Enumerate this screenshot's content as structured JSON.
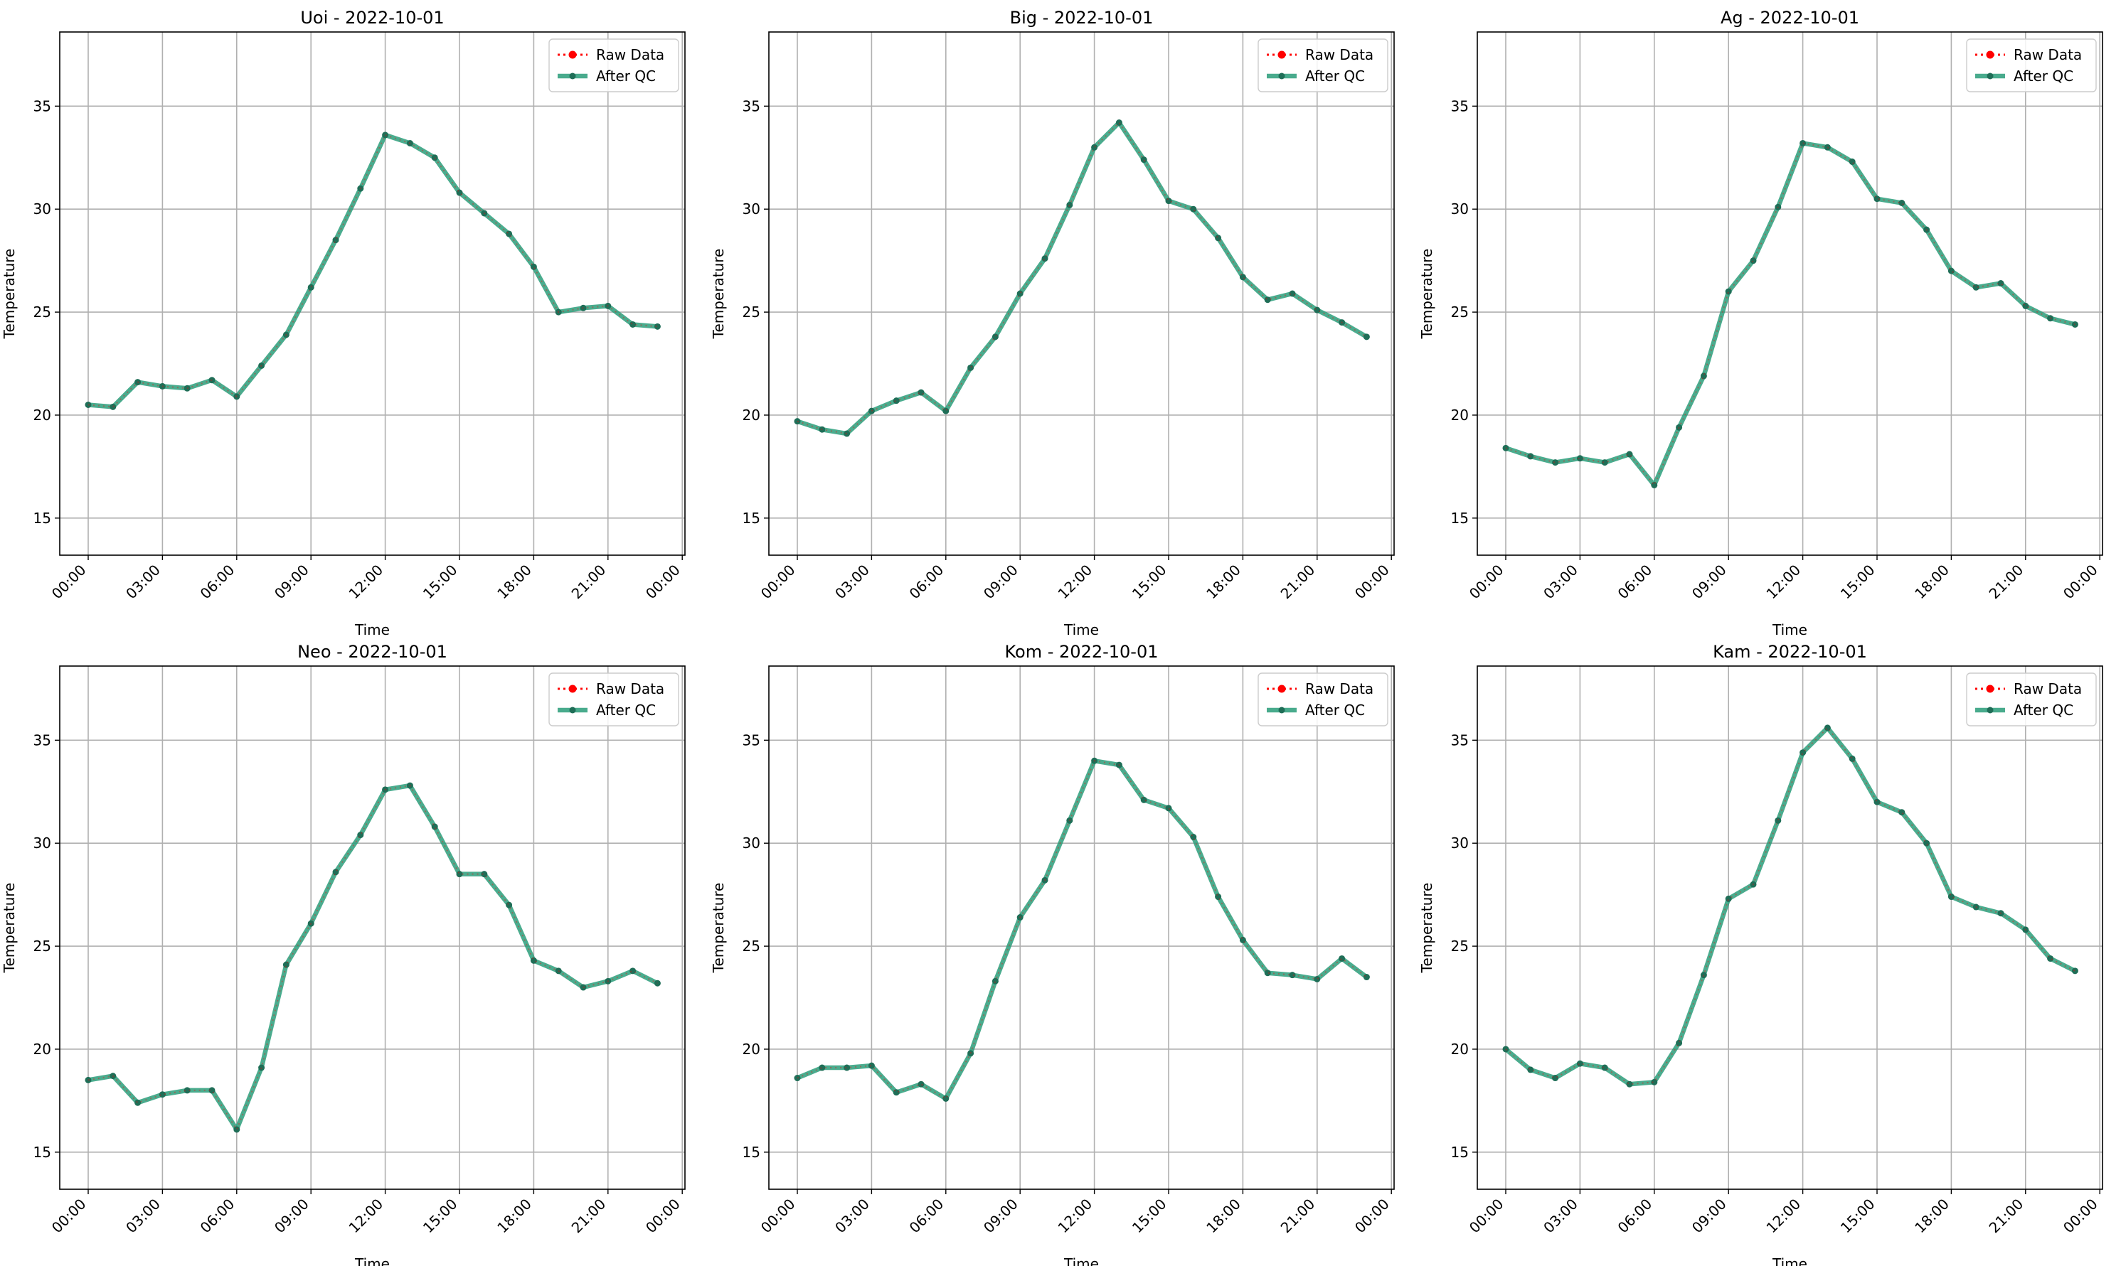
{
  "figure": {
    "legend": {
      "raw_label": "Raw Data",
      "qc_label": "After QC",
      "placement": "top-right"
    },
    "colors": {
      "raw": "#ff0000",
      "qc": "#2a9d7a",
      "qc_marker": "#1f6e57",
      "grid": "#b0b0b0",
      "axes": "#000000"
    }
  },
  "chart_data": [
    {
      "type": "line",
      "title": "Uoi - 2022-10-01",
      "xlabel": "Time",
      "ylabel": "Temperature",
      "x": [
        "00:00",
        "01:00",
        "02:00",
        "03:00",
        "04:00",
        "05:00",
        "06:00",
        "07:00",
        "08:00",
        "09:00",
        "10:00",
        "11:00",
        "12:00",
        "13:00",
        "14:00",
        "15:00",
        "16:00",
        "17:00",
        "18:00",
        "19:00",
        "20:00",
        "21:00",
        "22:00",
        "23:00"
      ],
      "xticks": [
        "00:00",
        "03:00",
        "06:00",
        "09:00",
        "12:00",
        "15:00",
        "18:00",
        "21:00",
        "00:00"
      ],
      "yticks": [
        15,
        20,
        25,
        30,
        35
      ],
      "ylim": [
        13.2,
        38.6
      ],
      "grid": true,
      "series": [
        {
          "name": "Raw Data",
          "values": [
            20.5,
            20.4,
            21.6,
            21.4,
            21.3,
            21.7,
            20.9,
            22.4,
            23.9,
            26.2,
            28.5,
            31.0,
            33.6,
            33.2,
            32.5,
            30.8,
            29.8,
            28.8,
            27.2,
            25.0,
            25.2,
            25.3,
            24.4,
            24.3
          ]
        },
        {
          "name": "After QC",
          "values": [
            20.5,
            20.4,
            21.6,
            21.4,
            21.3,
            21.7,
            20.9,
            22.4,
            23.9,
            26.2,
            28.5,
            31.0,
            33.6,
            33.2,
            32.5,
            30.8,
            29.8,
            28.8,
            27.2,
            25.0,
            25.2,
            25.3,
            24.4,
            24.3
          ]
        }
      ]
    },
    {
      "type": "line",
      "title": "Big - 2022-10-01",
      "xlabel": "Time",
      "ylabel": "Temperature",
      "x": [
        "00:00",
        "01:00",
        "02:00",
        "03:00",
        "04:00",
        "05:00",
        "06:00",
        "07:00",
        "08:00",
        "09:00",
        "10:00",
        "11:00",
        "12:00",
        "13:00",
        "14:00",
        "15:00",
        "16:00",
        "17:00",
        "18:00",
        "19:00",
        "20:00",
        "21:00",
        "22:00",
        "23:00"
      ],
      "xticks": [
        "00:00",
        "03:00",
        "06:00",
        "09:00",
        "12:00",
        "15:00",
        "18:00",
        "21:00",
        "00:00"
      ],
      "yticks": [
        15,
        20,
        25,
        30,
        35
      ],
      "ylim": [
        13.2,
        38.6
      ],
      "grid": true,
      "series": [
        {
          "name": "Raw Data",
          "values": [
            19.7,
            19.3,
            19.1,
            20.2,
            20.7,
            21.1,
            20.2,
            22.3,
            23.8,
            25.9,
            27.6,
            30.2,
            33.0,
            34.2,
            32.4,
            30.4,
            30.0,
            28.6,
            26.7,
            25.6,
            25.9,
            25.1,
            24.5,
            23.8
          ]
        },
        {
          "name": "After QC",
          "values": [
            19.7,
            19.3,
            19.1,
            20.2,
            20.7,
            21.1,
            20.2,
            22.3,
            23.8,
            25.9,
            27.6,
            30.2,
            33.0,
            34.2,
            32.4,
            30.4,
            30.0,
            28.6,
            26.7,
            25.6,
            25.9,
            25.1,
            24.5,
            23.8
          ]
        }
      ]
    },
    {
      "type": "line",
      "title": "Ag - 2022-10-01",
      "xlabel": "Time",
      "ylabel": "Temperature",
      "x": [
        "00:00",
        "01:00",
        "02:00",
        "03:00",
        "04:00",
        "05:00",
        "06:00",
        "07:00",
        "08:00",
        "09:00",
        "10:00",
        "11:00",
        "12:00",
        "13:00",
        "14:00",
        "15:00",
        "16:00",
        "17:00",
        "18:00",
        "19:00",
        "20:00",
        "21:00",
        "22:00",
        "23:00"
      ],
      "xticks": [
        "00:00",
        "03:00",
        "06:00",
        "09:00",
        "12:00",
        "15:00",
        "18:00",
        "21:00",
        "00:00"
      ],
      "yticks": [
        15,
        20,
        25,
        30,
        35
      ],
      "ylim": [
        13.2,
        38.6
      ],
      "grid": true,
      "series": [
        {
          "name": "Raw Data",
          "values": [
            18.4,
            18.0,
            17.7,
            17.9,
            17.7,
            18.1,
            16.6,
            19.4,
            21.9,
            26.0,
            27.5,
            30.1,
            33.2,
            33.0,
            32.3,
            30.5,
            30.3,
            29.0,
            27.0,
            26.2,
            26.4,
            25.3,
            24.7,
            24.4
          ]
        },
        {
          "name": "After QC",
          "values": [
            18.4,
            18.0,
            17.7,
            17.9,
            17.7,
            18.1,
            16.6,
            19.4,
            21.9,
            26.0,
            27.5,
            30.1,
            33.2,
            33.0,
            32.3,
            30.5,
            30.3,
            29.0,
            27.0,
            26.2,
            26.4,
            25.3,
            24.7,
            24.4
          ]
        }
      ]
    },
    {
      "type": "line",
      "title": "Neo - 2022-10-01",
      "xlabel": "Time",
      "ylabel": "Temperature",
      "x": [
        "00:00",
        "01:00",
        "02:00",
        "03:00",
        "04:00",
        "05:00",
        "06:00",
        "07:00",
        "08:00",
        "09:00",
        "10:00",
        "11:00",
        "12:00",
        "13:00",
        "14:00",
        "15:00",
        "16:00",
        "17:00",
        "18:00",
        "19:00",
        "20:00",
        "21:00",
        "22:00",
        "23:00"
      ],
      "xticks": [
        "00:00",
        "03:00",
        "06:00",
        "09:00",
        "12:00",
        "15:00",
        "18:00",
        "21:00",
        "00:00"
      ],
      "yticks": [
        15,
        20,
        25,
        30,
        35
      ],
      "ylim": [
        13.2,
        38.6
      ],
      "grid": true,
      "series": [
        {
          "name": "Raw Data",
          "values": [
            18.5,
            18.7,
            17.4,
            17.8,
            18.0,
            18.0,
            16.1,
            19.1,
            24.1,
            26.1,
            28.6,
            30.4,
            32.6,
            32.8,
            30.8,
            28.5,
            28.5,
            27.0,
            24.3,
            23.8,
            23.0,
            23.3,
            23.8,
            23.2
          ]
        },
        {
          "name": "After QC",
          "values": [
            18.5,
            18.7,
            17.4,
            17.8,
            18.0,
            18.0,
            16.1,
            19.1,
            24.1,
            26.1,
            28.6,
            30.4,
            32.6,
            32.8,
            30.8,
            28.5,
            28.5,
            27.0,
            24.3,
            23.8,
            23.0,
            23.3,
            23.8,
            23.2
          ]
        }
      ]
    },
    {
      "type": "line",
      "title": "Kom - 2022-10-01",
      "xlabel": "Time",
      "ylabel": "Temperature",
      "x": [
        "00:00",
        "01:00",
        "02:00",
        "03:00",
        "04:00",
        "05:00",
        "06:00",
        "07:00",
        "08:00",
        "09:00",
        "10:00",
        "11:00",
        "12:00",
        "13:00",
        "14:00",
        "15:00",
        "16:00",
        "17:00",
        "18:00",
        "19:00",
        "20:00",
        "21:00",
        "22:00",
        "23:00"
      ],
      "xticks": [
        "00:00",
        "03:00",
        "06:00",
        "09:00",
        "12:00",
        "15:00",
        "18:00",
        "21:00",
        "00:00"
      ],
      "yticks": [
        15,
        20,
        25,
        30,
        35
      ],
      "ylim": [
        13.2,
        38.6
      ],
      "grid": true,
      "series": [
        {
          "name": "Raw Data",
          "values": [
            18.6,
            19.1,
            19.1,
            19.2,
            17.9,
            18.3,
            17.6,
            19.8,
            23.3,
            26.4,
            28.2,
            31.1,
            34.0,
            33.8,
            32.1,
            31.7,
            30.3,
            27.4,
            25.3,
            23.7,
            23.6,
            23.4,
            24.4,
            23.5
          ]
        },
        {
          "name": "After QC",
          "values": [
            18.6,
            19.1,
            19.1,
            19.2,
            17.9,
            18.3,
            17.6,
            19.8,
            23.3,
            26.4,
            28.2,
            31.1,
            34.0,
            33.8,
            32.1,
            31.7,
            30.3,
            27.4,
            25.3,
            23.7,
            23.6,
            23.4,
            24.4,
            23.5
          ]
        }
      ]
    },
    {
      "type": "line",
      "title": "Kam - 2022-10-01",
      "xlabel": "Time",
      "ylabel": "Temperature",
      "x": [
        "00:00",
        "01:00",
        "02:00",
        "03:00",
        "04:00",
        "05:00",
        "06:00",
        "07:00",
        "08:00",
        "09:00",
        "10:00",
        "11:00",
        "12:00",
        "13:00",
        "14:00",
        "15:00",
        "16:00",
        "17:00",
        "18:00",
        "19:00",
        "20:00",
        "21:00",
        "22:00",
        "23:00"
      ],
      "xticks": [
        "00:00",
        "03:00",
        "06:00",
        "09:00",
        "12:00",
        "15:00",
        "18:00",
        "21:00",
        "00:00"
      ],
      "yticks": [
        15,
        20,
        25,
        30,
        35
      ],
      "ylim": [
        13.2,
        38.6
      ],
      "grid": true,
      "series": [
        {
          "name": "Raw Data",
          "values": [
            20.0,
            19.0,
            18.6,
            19.3,
            19.1,
            18.3,
            18.4,
            20.3,
            23.6,
            27.3,
            28.0,
            31.1,
            34.4,
            35.6,
            34.1,
            32.0,
            31.5,
            30.0,
            27.4,
            26.9,
            26.6,
            25.8,
            24.4,
            23.8
          ]
        },
        {
          "name": "After QC",
          "values": [
            20.0,
            19.0,
            18.6,
            19.3,
            19.1,
            18.3,
            18.4,
            20.3,
            23.6,
            27.3,
            28.0,
            31.1,
            34.4,
            35.6,
            34.1,
            32.0,
            31.5,
            30.0,
            27.4,
            26.9,
            26.6,
            25.8,
            24.4,
            23.8
          ]
        }
      ]
    }
  ]
}
